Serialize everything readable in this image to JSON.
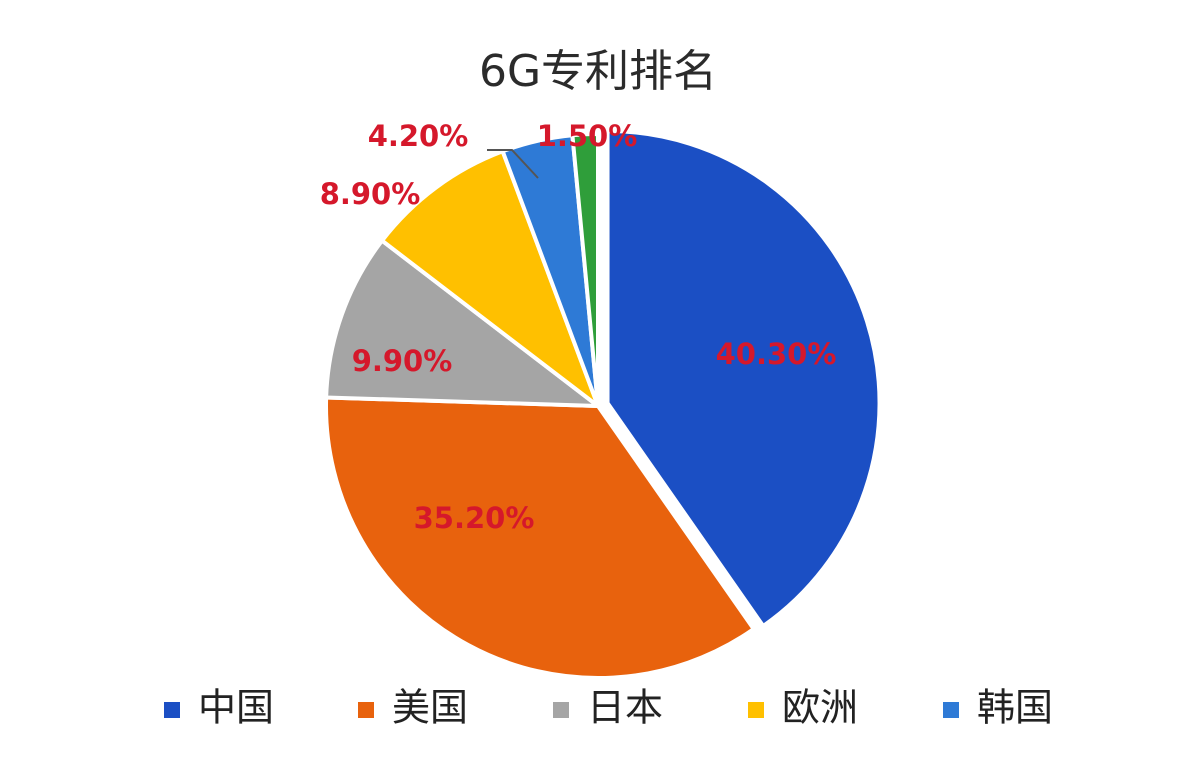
{
  "chart_data": {
    "type": "pie",
    "title": "6G专利排名",
    "legend_placement": "bottom",
    "label_color": "#d5182b",
    "series": [
      {
        "name": "中国",
        "value": 40.3,
        "label": "40.30%",
        "color": "#1b4fc4"
      },
      {
        "name": "美国",
        "value": 35.2,
        "label": "35.20%",
        "color": "#e8620d"
      },
      {
        "name": "日本",
        "value": 9.9,
        "label": "9.90%",
        "color": "#a5a5a5"
      },
      {
        "name": "欧洲",
        "value": 8.9,
        "label": "8.90%",
        "color": "#ffc000"
      },
      {
        "name": "韩国",
        "value": 4.2,
        "label": "4.20%",
        "color": "#2e7ad6"
      },
      {
        "name": "",
        "value": 1.5,
        "label": "1.50%",
        "color": "#2f9e3a"
      }
    ],
    "legend": [
      "中国",
      "美国",
      "日本",
      "欧洲",
      "韩国"
    ]
  }
}
